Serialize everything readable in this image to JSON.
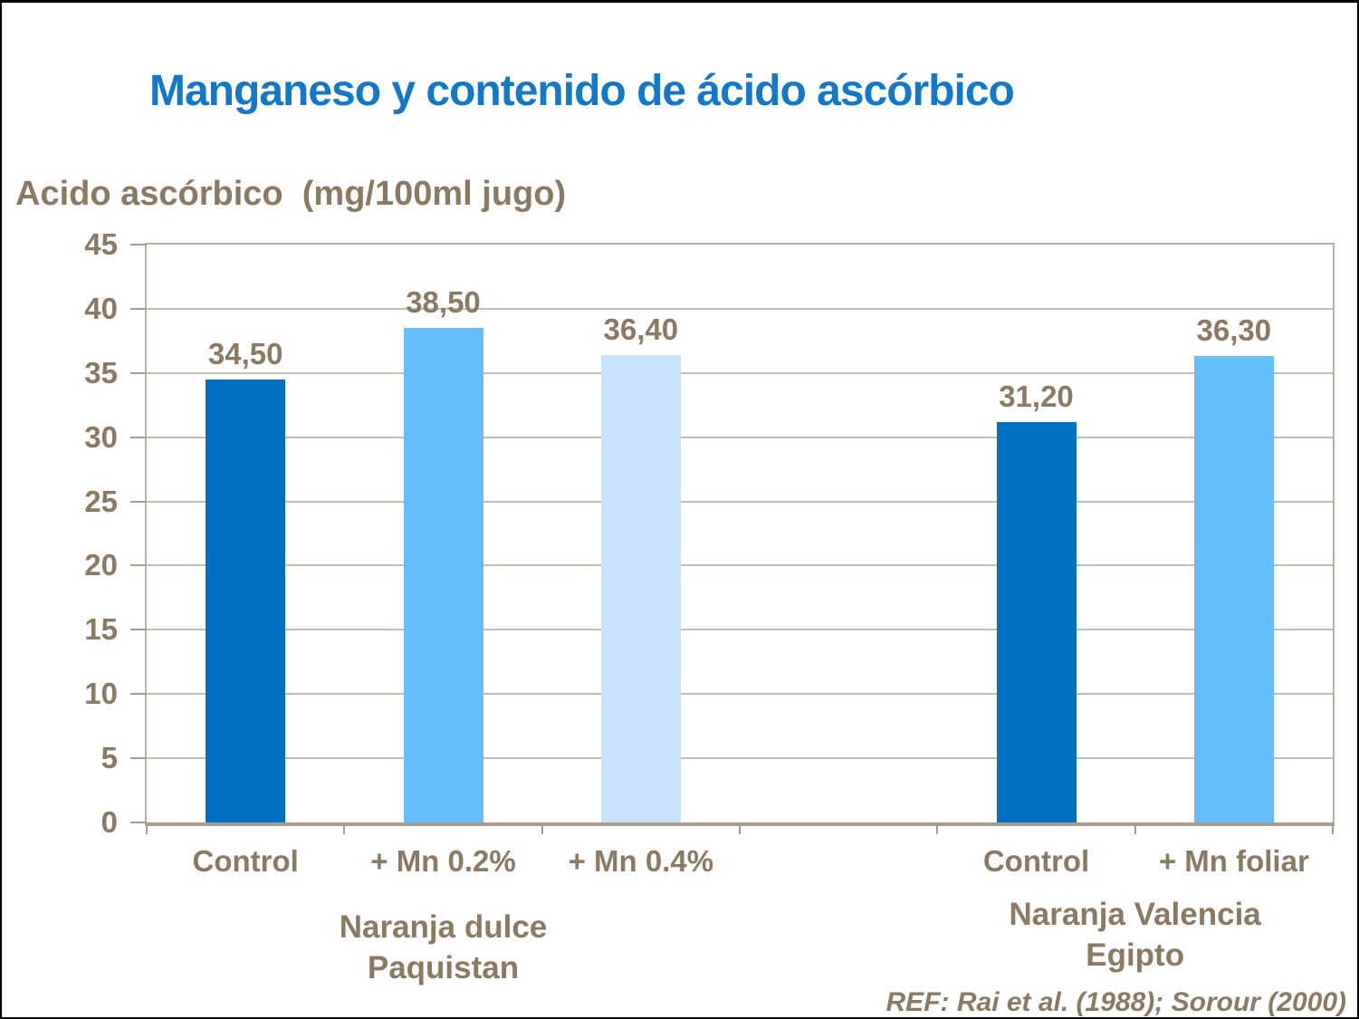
{
  "slide": {
    "title": "Manganeso y contenido de ácido ascórbico",
    "axis_title": "Acido ascórbico  (mg/100ml jugo)",
    "reference": "REF: Rai et al. (1988); Sorour (2000)"
  },
  "colors": {
    "title": "#1478C8",
    "label": "#8B7A63",
    "grid": "#C6BDB1",
    "frame": "#B9AFA2",
    "baseline": "#A89C8C",
    "bar_dark": "#0070C0",
    "bar_medium": "#66BEF8",
    "bar_light": "#C8E3FA"
  },
  "chart_data": {
    "type": "bar",
    "title": "Manganeso y contenido de ácido ascórbico",
    "xlabel": "",
    "ylabel": "Acido ascórbico (mg/100ml jugo)",
    "ylim": [
      0,
      45
    ],
    "ytick_step": 5,
    "yticks": [
      45,
      40,
      35,
      30,
      25,
      20,
      15,
      10,
      5,
      0
    ],
    "grid": true,
    "legend": "none",
    "slots": 6,
    "bars": [
      {
        "slot": 0,
        "label": "Control",
        "value": 34.5,
        "display": "34,50",
        "color": "bar_dark",
        "group": "Naranja dulce Paquistan"
      },
      {
        "slot": 1,
        "label": "+ Mn 0.2%",
        "value": 38.5,
        "display": "38,50",
        "color": "bar_medium",
        "group": "Naranja dulce Paquistan"
      },
      {
        "slot": 2,
        "label": "+ Mn 0.4%",
        "value": 36.4,
        "display": "36,40",
        "color": "bar_light",
        "group": "Naranja dulce Paquistan"
      },
      {
        "slot": 4,
        "label": "Control",
        "value": 31.2,
        "display": "31,20",
        "color": "bar_dark",
        "group": "Naranja Valencia Egipto"
      },
      {
        "slot": 5,
        "label": "+ Mn foliar",
        "value": 36.3,
        "display": "36,30",
        "color": "bar_medium",
        "group": "Naranja Valencia Egipto"
      }
    ],
    "groups": [
      {
        "lines": [
          "Naranja dulce",
          "Paquistan"
        ],
        "center_slot": 1
      },
      {
        "lines": [
          "Naranja Valencia",
          "Egipto"
        ],
        "center_slot": 4.5
      }
    ]
  }
}
